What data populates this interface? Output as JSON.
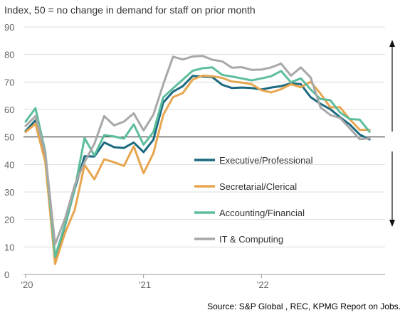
{
  "chart_data": {
    "type": "line",
    "title": "Index, 50 = no change in demand for staff on prior month",
    "source": "Source: S&P Global , REC, KPMG Report on Jobs.",
    "xlabel": "",
    "ylabel": "",
    "ylim": [
      0,
      90
    ],
    "yticks": [
      0,
      10,
      20,
      30,
      40,
      50,
      60,
      70,
      80,
      90
    ],
    "xlim": [
      0,
      36
    ],
    "xticks": [
      {
        "x": 0,
        "label": "'20"
      },
      {
        "x": 12,
        "label": "'21"
      },
      {
        "x": 24,
        "label": "'22"
      }
    ],
    "reference_line": 50,
    "grid": "horizontal",
    "legend_position": "center-right",
    "x": [
      0,
      1,
      2,
      3,
      4,
      5,
      6,
      7,
      8,
      9,
      10,
      11,
      12,
      13,
      14,
      15,
      16,
      17,
      18,
      19,
      20,
      21,
      22,
      23,
      24,
      25,
      26,
      27,
      28,
      29,
      30,
      31,
      32,
      33,
      34,
      35
    ],
    "series": [
      {
        "name": "Executive/Professional",
        "color": "#1c6a80",
        "values": [
          52.2,
          56.1,
          42.5,
          5.8,
          17.6,
          31.0,
          43.0,
          42.9,
          48.0,
          46.3,
          46.0,
          48.0,
          44.5,
          49.0,
          62.5,
          66.5,
          68.5,
          72.2,
          72.0,
          71.8,
          69.0,
          67.8,
          68.0,
          67.8,
          67.3,
          68.0,
          68.5,
          69.5,
          69.2,
          64.5,
          62.1,
          60.1,
          57.2,
          54.5,
          50.9,
          49.1
        ]
      },
      {
        "name": "Secretarial/Clerical",
        "color": "#e7a64f",
        "values": [
          51.8,
          54.8,
          41.0,
          3.8,
          15.0,
          23.5,
          39.8,
          34.6,
          41.9,
          40.8,
          39.5,
          46.6,
          36.8,
          44.1,
          58.0,
          64.5,
          66.0,
          70.9,
          72.3,
          72.1,
          71.5,
          70.2,
          69.8,
          69.2,
          67.0,
          66.2,
          67.4,
          69.2,
          68.1,
          70.1,
          65.8,
          60.8,
          60.8,
          56.4,
          52.6,
          52.6
        ]
      },
      {
        "name": "Accounting/Financial",
        "color": "#5dbd9d",
        "values": [
          55.6,
          60.5,
          44.7,
          6.5,
          18.0,
          31.1,
          49.6,
          43.3,
          50.7,
          50.2,
          49.4,
          54.6,
          47.2,
          51.8,
          64.4,
          67.7,
          70.9,
          74.1,
          75.0,
          75.3,
          72.6,
          72.0,
          71.3,
          70.6,
          71.3,
          72.1,
          74.0,
          69.9,
          71.3,
          67.3,
          63.8,
          63.4,
          58.9,
          56.5,
          56.3,
          51.9
        ]
      },
      {
        "name": "IT & Computing",
        "color": "#a8a8a8",
        "values": [
          54.0,
          57.6,
          44.2,
          11.0,
          20.2,
          32.5,
          40.9,
          47.5,
          57.6,
          54.2,
          55.6,
          58.6,
          52.4,
          58.1,
          69.1,
          79.2,
          78.2,
          79.3,
          79.5,
          78.1,
          77.5,
          75.2,
          75.4,
          74.4,
          74.5,
          75.3,
          76.7,
          72.3,
          75.3,
          71.7,
          60.8,
          58.0,
          56.9,
          53.1,
          49.2,
          49.5
        ]
      }
    ]
  }
}
